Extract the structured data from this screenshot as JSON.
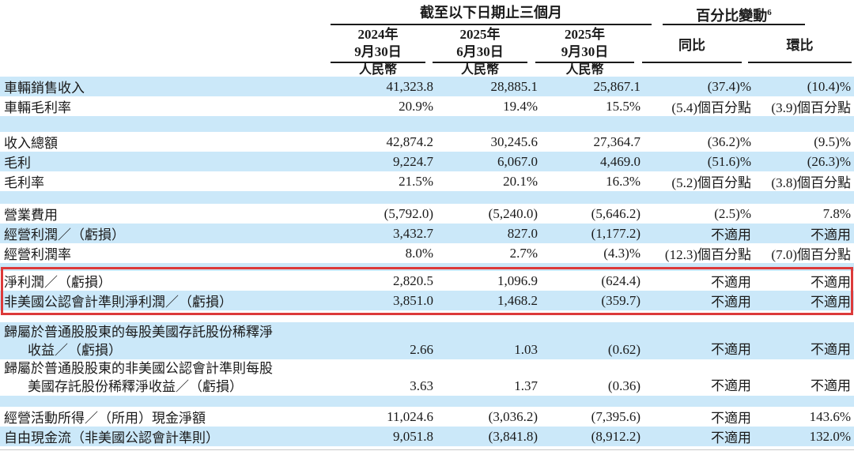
{
  "colors": {
    "stripe_blue": "#cbe8f9",
    "highlight_red": "#dc3a3a",
    "text": "#1a1a1a",
    "rule": "#1a1a1a"
  },
  "header": {
    "period_group": "截至以下日期止三個月",
    "change_group": "百分比變動",
    "change_group_sup": "6",
    "date_cols": [
      {
        "year": "2024年",
        "day": "9月30日",
        "currency": "人民幣"
      },
      {
        "year": "2025年",
        "day": "6月30日",
        "currency": "人民幣"
      },
      {
        "year": "2025年",
        "day": "9月30日",
        "currency": "人民幣"
      }
    ],
    "yoy": "同比",
    "qoq": "環比"
  },
  "table": {
    "rows": [
      {
        "type": "data",
        "shade": "blue",
        "height": 25,
        "label": "車輛銷售收入",
        "values": [
          "41,323.8",
          "28,885.1",
          "25,867.1",
          "(37.4)%",
          "(10.4)%"
        ]
      },
      {
        "type": "data",
        "shade": "white",
        "height": 25,
        "label": "車輛毛利率",
        "values": [
          "20.9%",
          "19.4%",
          "15.5%",
          "(5.4)個百分點",
          "(3.9)個百分點"
        ]
      },
      {
        "type": "spacer",
        "shade": "blue",
        "height": 20
      },
      {
        "type": "data",
        "shade": "white",
        "height": 25,
        "label": "收入總額",
        "values": [
          "42,874.2",
          "30,245.6",
          "27,364.7",
          "(36.2)%",
          "(9.5)%"
        ]
      },
      {
        "type": "data",
        "shade": "blue",
        "height": 25,
        "label": "毛利",
        "values": [
          "9,224.7",
          "6,067.0",
          "4,469.0",
          "(51.6)%",
          "(26.3)%"
        ]
      },
      {
        "type": "data",
        "shade": "white",
        "height": 25,
        "label": "毛利率",
        "values": [
          "21.5%",
          "20.1%",
          "16.3%",
          "(5.2)個百分點",
          "(3.8)個百分點"
        ]
      },
      {
        "type": "spacer",
        "shade": "blue",
        "height": 16
      },
      {
        "type": "data",
        "shade": "white",
        "height": 25,
        "label": "營業費用",
        "values": [
          "(5,792.0)",
          "(5,240.0)",
          "(5,646.2)",
          "(2.5)%",
          "7.8%"
        ]
      },
      {
        "type": "data",
        "shade": "blue",
        "height": 25,
        "label": "經營利潤／（虧損）",
        "values": [
          "3,432.7",
          "827.0",
          "(1,177.2)",
          "不適用",
          "不適用"
        ]
      },
      {
        "type": "data",
        "shade": "white",
        "height": 25,
        "label": "經營利潤率",
        "values": [
          "8.0%",
          "2.7%",
          "(4.3)%",
          "(12.3)個百分點",
          "(7.0)個百分點"
        ]
      },
      {
        "type": "spacer",
        "shade": "blue",
        "height": 10
      },
      {
        "type": "data",
        "shade": "white",
        "height": 25,
        "label": "淨利潤／（虧損）",
        "values": [
          "2,820.5",
          "1,096.9",
          "(624.4)",
          "不適用",
          "不適用"
        ],
        "highlighted": true
      },
      {
        "type": "data",
        "shade": "blue",
        "height": 25,
        "label": "非美國公認會計準則淨利潤／（虧損）",
        "values": [
          "3,851.0",
          "1,468.2",
          "(359.7)",
          "不適用",
          "不適用"
        ],
        "highlighted": true
      },
      {
        "type": "spacer",
        "shade": "white",
        "height": 15
      },
      {
        "type": "data",
        "shade": "blue",
        "height": 47,
        "label": "歸屬於普通股股東的每股美國存託股份稀釋淨",
        "label2": "收益／（虧損）",
        "values": [
          "2.66",
          "1.03",
          "(0.62)",
          "不適用",
          "不適用"
        ]
      },
      {
        "type": "data",
        "shade": "white",
        "height": 46,
        "label": "歸屬於普通股股東的非美國公認會計準則每股",
        "label2": "美國存託股份稀釋淨收益／（虧損）",
        "values": [
          "3.63",
          "1.37",
          "(0.36)",
          "不適用",
          "不適用"
        ]
      },
      {
        "type": "spacer",
        "shade": "blue",
        "height": 14
      },
      {
        "type": "data",
        "shade": "white",
        "height": 25,
        "label": "經營活動所得／（所用）現金淨額",
        "values": [
          "11,024.6",
          "(3,036.2)",
          "(7,395.6)",
          "不適用",
          "143.6%"
        ]
      },
      {
        "type": "data",
        "shade": "blue",
        "height": 25,
        "label": "自由現金流（非美國公認會計準則）",
        "values": [
          "9,051.8",
          "(3,841.8)",
          "(8,912.2)",
          "不適用",
          "132.0%"
        ]
      }
    ]
  }
}
